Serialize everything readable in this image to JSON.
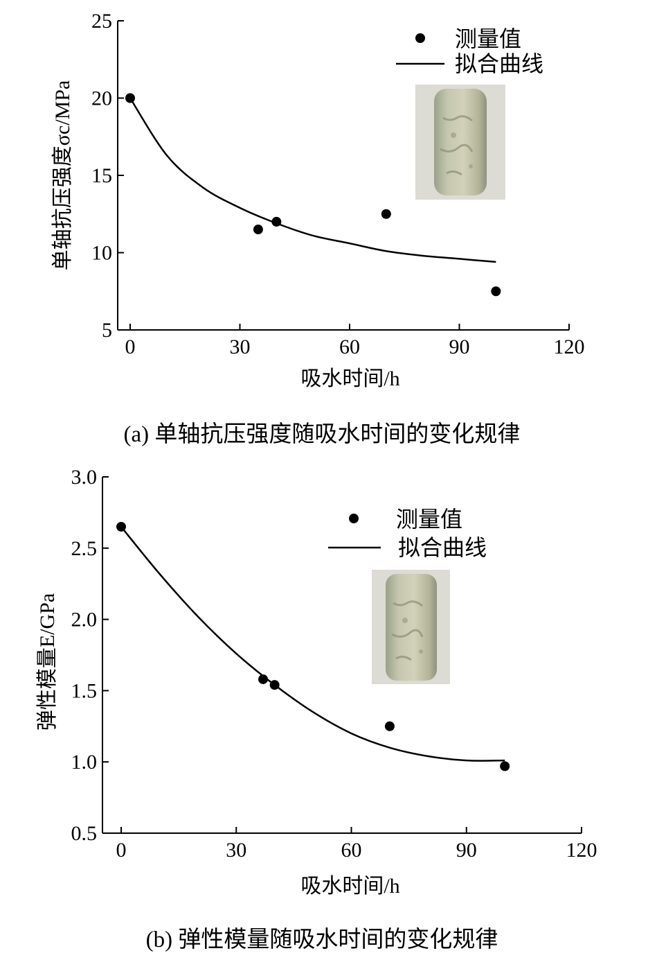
{
  "chart_data": [
    {
      "type": "scatter",
      "caption": "(a)  单轴抗压强度随吸水时间的变化规律",
      "xlabel": "吸水时间/h",
      "ylabel": "单轴抗压强度σc/MPa",
      "xlim": [
        0,
        120
      ],
      "ylim": [
        5,
        25
      ],
      "xticks": [
        "0",
        "30",
        "60",
        "90",
        "120"
      ],
      "yticks": [
        "5",
        "10",
        "15",
        "20",
        "25"
      ],
      "legend": {
        "points": "测量值",
        "line": "拟合曲线",
        "position": "top-right"
      },
      "series": [
        {
          "name": "测量值",
          "type": "scatter",
          "x": [
            0,
            35,
            40,
            70,
            100
          ],
          "y": [
            20.0,
            11.5,
            12.0,
            12.5,
            7.5
          ]
        },
        {
          "name": "拟合曲线",
          "type": "line",
          "x": [
            0,
            10,
            20,
            30,
            40,
            50,
            60,
            70,
            80,
            90,
            100
          ],
          "y": [
            20.0,
            16.3,
            14.2,
            12.9,
            11.9,
            11.1,
            10.6,
            10.1,
            9.8,
            9.6,
            9.4
          ]
        }
      ],
      "grid": false,
      "inset_image": "rock-core-sample"
    },
    {
      "type": "scatter",
      "caption": "(b)  弹性模量随吸水时间的变化规律",
      "xlabel": "吸水时间/h",
      "ylabel": "弹性模量E/GPa",
      "xlim": [
        0,
        120
      ],
      "ylim": [
        0.5,
        3.0
      ],
      "xticks": [
        "0",
        "30",
        "60",
        "90",
        "120"
      ],
      "yticks": [
        "0.5",
        "1.0",
        "1.5",
        "2.0",
        "2.5",
        "3.0"
      ],
      "legend": {
        "points": "测量值",
        "line": "拟合曲线",
        "position": "top-right"
      },
      "series": [
        {
          "name": "测量值",
          "type": "scatter",
          "x": [
            0,
            37,
            40,
            70,
            100
          ],
          "y": [
            2.65,
            1.58,
            1.54,
            1.25,
            0.97
          ]
        },
        {
          "name": "拟合曲线",
          "type": "line",
          "x": [
            0,
            10,
            20,
            30,
            40,
            50,
            60,
            70,
            80,
            90,
            100
          ],
          "y": [
            2.65,
            2.32,
            2.02,
            1.76,
            1.54,
            1.35,
            1.2,
            1.1,
            1.04,
            1.01,
            1.01
          ]
        }
      ],
      "grid": false,
      "inset_image": "rock-core-sample"
    }
  ]
}
